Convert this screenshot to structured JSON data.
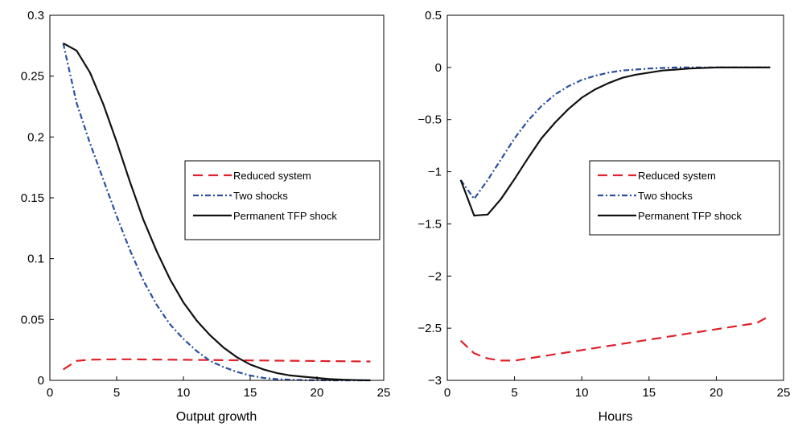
{
  "chart_data": [
    {
      "type": "line",
      "xlabel": "Output growth",
      "ylabel": "",
      "xlim": [
        0,
        25
      ],
      "ylim": [
        0,
        0.3
      ],
      "xticks": [
        0,
        5,
        10,
        15,
        20,
        25
      ],
      "yticks": [
        0,
        0.05,
        0.1,
        0.15,
        0.2,
        0.25,
        0.3
      ],
      "ytick_labels": [
        "0",
        "0.05",
        "0.1",
        "0.15",
        "0.2",
        "0.25",
        "0.3"
      ],
      "xtick_labels": [
        "0",
        "5",
        "10",
        "15",
        "20",
        "25"
      ],
      "grid": false,
      "legend_position": "right-center",
      "x": [
        1,
        2,
        3,
        4,
        5,
        6,
        7,
        8,
        9,
        10,
        11,
        12,
        13,
        14,
        15,
        16,
        17,
        18,
        19,
        20,
        21,
        22,
        23,
        24
      ],
      "series": [
        {
          "name": "Reduced system",
          "color": "#e0202a",
          "dash": "dashed",
          "values": [
            0.009,
            0.016,
            0.017,
            0.0172,
            0.0173,
            0.0173,
            0.0172,
            0.0171,
            0.017,
            0.0169,
            0.0168,
            0.0167,
            0.0166,
            0.0165,
            0.0164,
            0.0163,
            0.0162,
            0.0161,
            0.016,
            0.0159,
            0.0158,
            0.0157,
            0.0156,
            0.0155
          ]
        },
        {
          "name": "Two shocks",
          "color": "#2a4fa0",
          "dash": "dashdot",
          "values": [
            0.277,
            0.228,
            0.195,
            0.165,
            0.135,
            0.107,
            0.082,
            0.062,
            0.046,
            0.034,
            0.024,
            0.016,
            0.011,
            0.007,
            0.004,
            0.002,
            0.001,
            0.0005,
            0.0002,
            0.0001,
            0,
            0,
            0,
            0
          ]
        },
        {
          "name": "Permanent TFP shock",
          "color": "#111111",
          "dash": "solid",
          "values": [
            0.277,
            0.271,
            0.253,
            0.227,
            0.196,
            0.163,
            0.132,
            0.106,
            0.083,
            0.064,
            0.049,
            0.037,
            0.027,
            0.019,
            0.013,
            0.009,
            0.006,
            0.004,
            0.003,
            0.002,
            0.001,
            0.0005,
            0.0002,
            0
          ]
        }
      ]
    },
    {
      "type": "line",
      "xlabel": "Hours",
      "ylabel": "",
      "xlim": [
        0,
        25
      ],
      "ylim": [
        -3,
        0.5
      ],
      "xticks": [
        0,
        5,
        10,
        15,
        20,
        25
      ],
      "yticks": [
        -3,
        -2.5,
        -2,
        -1.5,
        -1,
        -0.5,
        0,
        0.5
      ],
      "ytick_labels": [
        "−3",
        "−2.5",
        "−2",
        "−1.5",
        "−1",
        "−0.5",
        "0",
        "0.5"
      ],
      "xtick_labels": [
        "0",
        "5",
        "10",
        "15",
        "20",
        "25"
      ],
      "grid": false,
      "legend_position": "right-center",
      "x": [
        1,
        2,
        3,
        4,
        5,
        6,
        7,
        8,
        9,
        10,
        11,
        12,
        13,
        14,
        15,
        16,
        17,
        18,
        19,
        20,
        21,
        22,
        23,
        24
      ],
      "series": [
        {
          "name": "Reduced system",
          "color": "#e0202a",
          "dash": "dashed",
          "values": [
            -2.62,
            -2.74,
            -2.79,
            -2.81,
            -2.81,
            -2.79,
            -2.77,
            -2.75,
            -2.73,
            -2.71,
            -2.69,
            -2.67,
            -2.65,
            -2.63,
            -2.61,
            -2.59,
            -2.57,
            -2.55,
            -2.53,
            -2.51,
            -2.49,
            -2.47,
            -2.45,
            -2.38
          ]
        },
        {
          "name": "Two shocks",
          "color": "#2a4fa0",
          "dash": "dashdot",
          "values": [
            -1.08,
            -1.26,
            -1.08,
            -0.88,
            -0.68,
            -0.51,
            -0.37,
            -0.26,
            -0.18,
            -0.12,
            -0.08,
            -0.05,
            -0.03,
            -0.02,
            -0.01,
            -0.005,
            0,
            0,
            0,
            0,
            0,
            0,
            0,
            0
          ]
        },
        {
          "name": "Permanent TFP shock",
          "color": "#111111",
          "dash": "solid",
          "values": [
            -1.08,
            -1.42,
            -1.41,
            -1.26,
            -1.07,
            -0.87,
            -0.68,
            -0.53,
            -0.4,
            -0.29,
            -0.21,
            -0.15,
            -0.1,
            -0.07,
            -0.05,
            -0.03,
            -0.02,
            -0.01,
            -0.005,
            0,
            0,
            0,
            0,
            0
          ]
        }
      ]
    }
  ]
}
